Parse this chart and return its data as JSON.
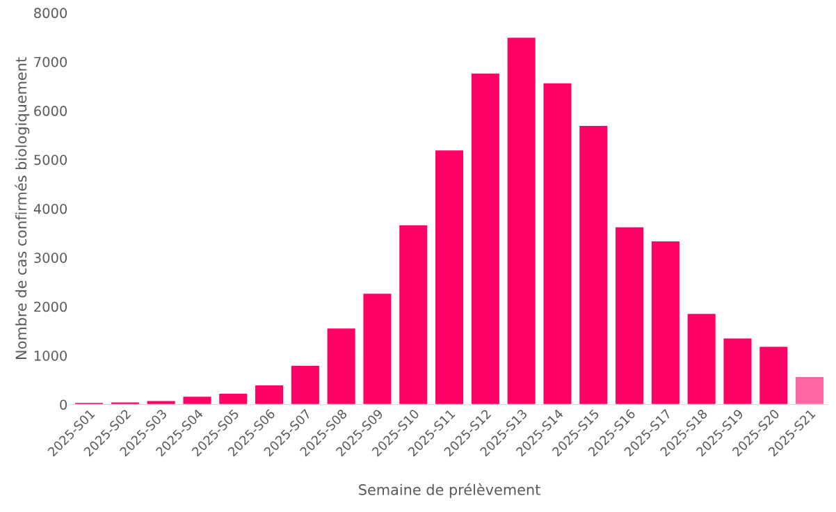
{
  "chart_data": {
    "type": "bar",
    "xlabel": "Semaine de prélèvement",
    "ylabel": "Nombre de cas confirmés biologiquement",
    "categories": [
      "2025-S01",
      "2025-S02",
      "2025-S03",
      "2025-S04",
      "2025-S05",
      "2025-S06",
      "2025-S07",
      "2025-S08",
      "2025-S09",
      "2025-S10",
      "2025-S11",
      "2025-S12",
      "2025-S13",
      "2025-S14",
      "2025-S15",
      "2025-S16",
      "2025-S17",
      "2025-S18",
      "2025-S19",
      "2025-S20",
      "2025-S21"
    ],
    "values": [
      40,
      50,
      80,
      170,
      230,
      400,
      800,
      1560,
      2270,
      3670,
      5200,
      6770,
      7500,
      6570,
      5700,
      3630,
      3340,
      1860,
      1360,
      1190,
      570
    ],
    "colors": [
      "#ff0066",
      "#ff0066",
      "#ff0066",
      "#ff0066",
      "#ff0066",
      "#ff0066",
      "#ff0066",
      "#ff0066",
      "#ff0066",
      "#ff0066",
      "#ff0066",
      "#ff0066",
      "#ff0066",
      "#ff0066",
      "#ff0066",
      "#ff0066",
      "#ff0066",
      "#ff0066",
      "#ff0066",
      "#ff0066",
      "#ff66a3"
    ],
    "ylim": [
      0,
      8000
    ],
    "yticks": [
      0,
      1000,
      2000,
      3000,
      4000,
      5000,
      6000,
      7000,
      8000
    ],
    "grid": false
  }
}
